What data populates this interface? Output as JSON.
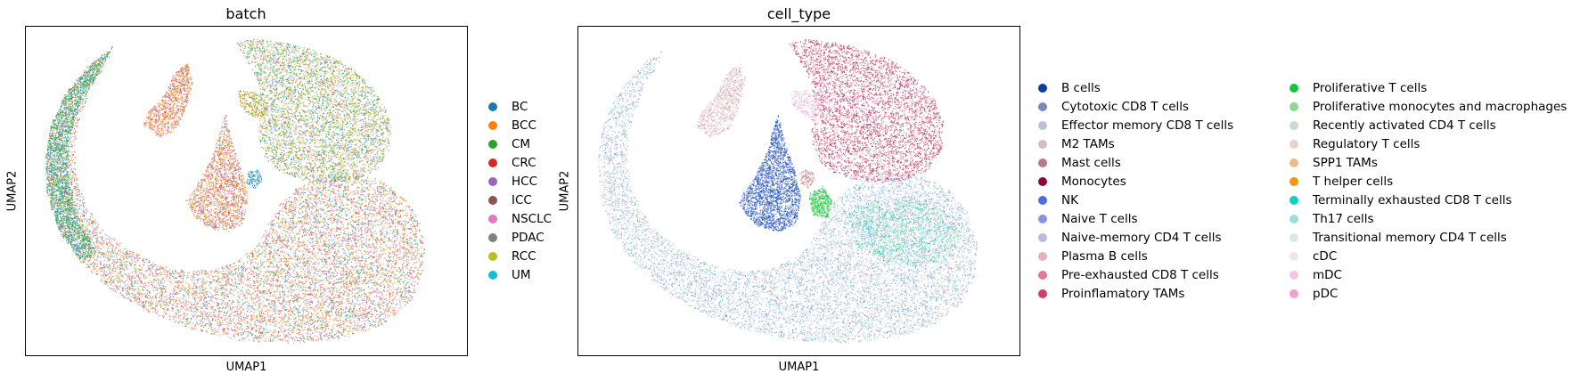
{
  "panels": [
    {
      "title": "batch",
      "xlabel": "UMAP1",
      "ylabel": "UMAP2",
      "legend_columns": 1,
      "legend": [
        {
          "label": "BC",
          "color": "#1f77b4"
        },
        {
          "label": "BCC",
          "color": "#ff7f0e"
        },
        {
          "label": "CM",
          "color": "#2ca02c"
        },
        {
          "label": "CRC",
          "color": "#d62728"
        },
        {
          "label": "HCC",
          "color": "#9467bd"
        },
        {
          "label": "ICC",
          "color": "#8c564b"
        },
        {
          "label": "NSCLC",
          "color": "#e377c2"
        },
        {
          "label": "PDAC",
          "color": "#7f7f7f"
        },
        {
          "label": "RCC",
          "color": "#bcbd22"
        },
        {
          "label": "UM",
          "color": "#17becf"
        }
      ]
    },
    {
      "title": "cell_type",
      "xlabel": "UMAP1",
      "ylabel": "UMAP2",
      "legend_columns": 2,
      "legend": [
        {
          "label": "B cells",
          "color": "#023fa5"
        },
        {
          "label": "Cytotoxic CD8 T cells",
          "color": "#7d87b9"
        },
        {
          "label": "Effector memory CD8 T cells",
          "color": "#bec1d4"
        },
        {
          "label": "M2 TAMs",
          "color": "#d6bcc0"
        },
        {
          "label": "Mast cells",
          "color": "#bb7784"
        },
        {
          "label": "Monocytes",
          "color": "#8e063b"
        },
        {
          "label": "NK",
          "color": "#4a6fe3"
        },
        {
          "label": "Naive T cells",
          "color": "#8595e1"
        },
        {
          "label": "Naive-memory CD4 T cells",
          "color": "#b5bbe3"
        },
        {
          "label": "Plasma B cells",
          "color": "#e6afb9"
        },
        {
          "label": "Pre-exhausted CD8 T cells",
          "color": "#e07b91"
        },
        {
          "label": "Proinflamatory TAMs",
          "color": "#d33f6a"
        },
        {
          "label": "Proliferative T cells",
          "color": "#11c638"
        },
        {
          "label": "Proliferative monocytes and macrophages",
          "color": "#8dd593"
        },
        {
          "label": "Recently activated CD4 T cells",
          "color": "#c6dec7"
        },
        {
          "label": "Regulatory T cells",
          "color": "#ead3c6"
        },
        {
          "label": "SPP1 TAMs",
          "color": "#f0b98d"
        },
        {
          "label": "T helper cells",
          "color": "#ef9708"
        },
        {
          "label": "Terminally exhausted CD8 T cells",
          "color": "#0fcfc0"
        },
        {
          "label": "Th17 cells",
          "color": "#9cded6"
        },
        {
          "label": "Transitional memory CD4 T cells",
          "color": "#d5eae7"
        },
        {
          "label": "cDC",
          "color": "#f3e1eb"
        },
        {
          "label": "mDC",
          "color": "#f6c4e1"
        },
        {
          "label": "pDC",
          "color": "#f79cd4"
        }
      ]
    }
  ],
  "chart_data": [
    {
      "type": "scatter",
      "title": "batch",
      "xlabel": "UMAP1",
      "ylabel": "UMAP2",
      "grid": false,
      "legend_placement": "right",
      "series_names": [
        "BC",
        "BCC",
        "CM",
        "CRC",
        "HCC",
        "ICC",
        "NSCLC",
        "PDAC",
        "RCC",
        "UM"
      ]
    },
    {
      "type": "scatter",
      "title": "cell_type",
      "xlabel": "UMAP1",
      "ylabel": "UMAP2",
      "grid": false,
      "legend_placement": "right",
      "series_names": [
        "B cells",
        "Cytotoxic CD8 T cells",
        "Effector memory CD8 T cells",
        "M2 TAMs",
        "Mast cells",
        "Monocytes",
        "NK",
        "Naive T cells",
        "Naive-memory CD4 T cells",
        "Plasma B cells",
        "Pre-exhausted CD8 T cells",
        "Proinflamatory TAMs",
        "Proliferative T cells",
        "Proliferative monocytes and macrophages",
        "Recently activated CD4 T cells",
        "Regulatory T cells",
        "SPP1 TAMs",
        "T helper cells",
        "Terminally exhausted CD8 T cells",
        "Th17 cells",
        "Transitional memory CD4 T cells",
        "cDC",
        "mDC",
        "pDC"
      ]
    }
  ]
}
